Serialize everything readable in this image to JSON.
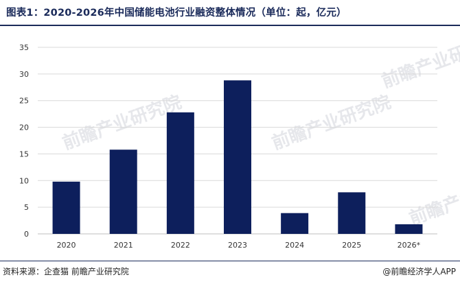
{
  "title": "图表1：2020-2026年中国储能电池行业融资整体情况（单位：起，亿元）",
  "source": "资料来源：企查猫 前瞻产业研究院",
  "credit": "@前瞻经济学人APP",
  "watermark": "前瞻产业研究院",
  "colors": {
    "bar": "#0d1f5c",
    "grid": "#d9d9d9",
    "axis": "#bfbfbf"
  },
  "chart_data": {
    "type": "bar",
    "categories": [
      "2020",
      "2021",
      "2022",
      "2023",
      "2024",
      "2025",
      "2026*"
    ],
    "values": [
      9.8,
      15.8,
      22.8,
      28.8,
      3.9,
      7.8,
      1.8
    ],
    "ylim": [
      0,
      35
    ],
    "yticks": [
      0,
      5,
      10,
      15,
      20,
      25,
      30,
      35
    ],
    "grid": true,
    "legend": "none"
  }
}
